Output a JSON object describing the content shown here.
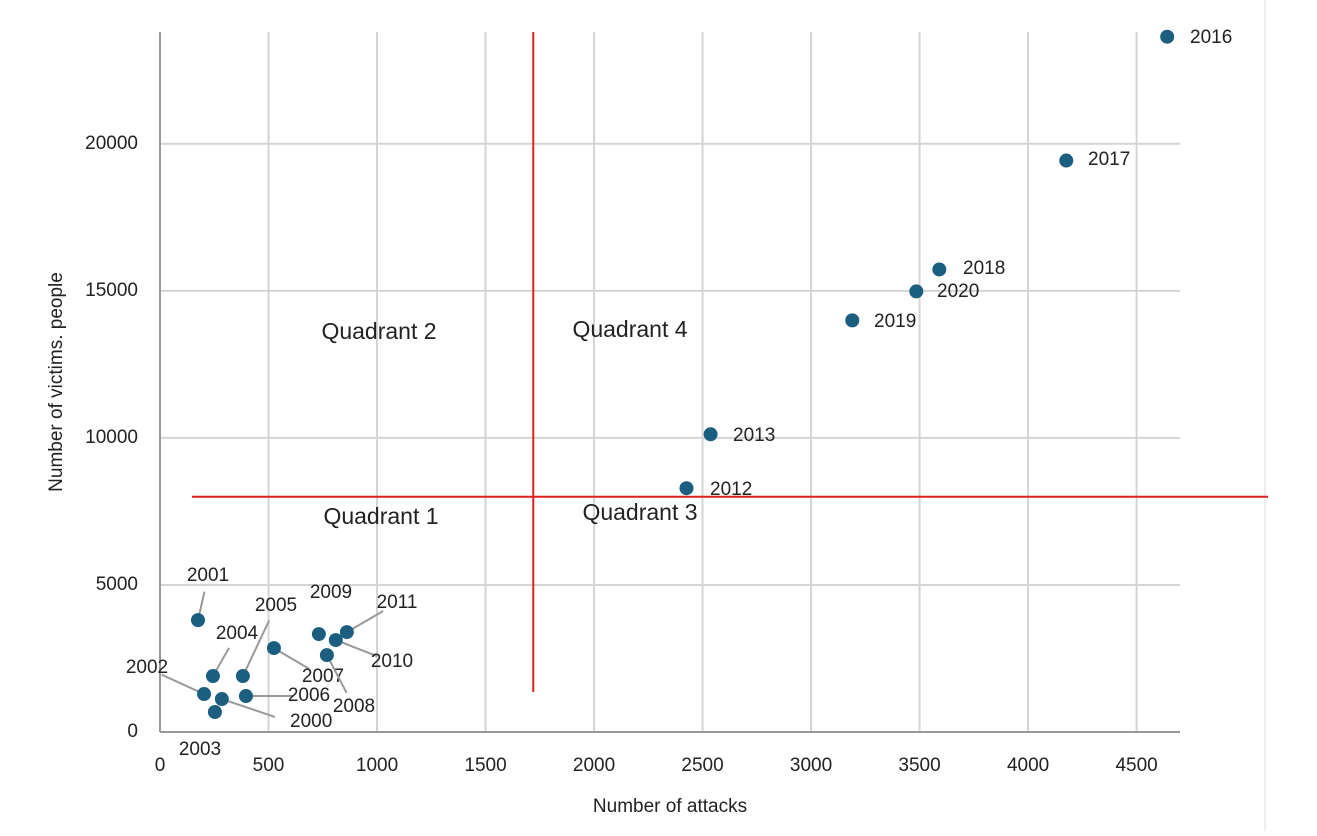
{
  "chart_data": {
    "type": "scatter",
    "x_label": "Number of attacks",
    "y_label": "Number of victims. people",
    "x": [
      285,
      175,
      203,
      253,
      244,
      382,
      396,
      525,
      769,
      732,
      810,
      861,
      2426,
      2537,
      4641,
      4176,
      3591,
      3190,
      3485
    ],
    "series": [
      {
        "color": "#1b5e80",
        "values": [
          1121,
          3804,
          1290,
          680,
          1902,
          1902,
          1223,
          2853,
          2615,
          3329,
          3125,
          3397,
          8288,
          10122,
          23640,
          19430,
          15727,
          13995,
          14980
        ],
        "labels": [
          "2000",
          "2001",
          "2002",
          "2003",
          "2004",
          "2005",
          "2006",
          "2007",
          "2008",
          "2009",
          "2010",
          "2011",
          "2012",
          "2013",
          "2016",
          "2017",
          "2018",
          "2019",
          "2020"
        ]
      }
    ],
    "xlim": [
      0,
      4700
    ],
    "ylim": [
      0,
      23800
    ],
    "xticks": [
      0,
      500,
      1000,
      1500,
      2000,
      2500,
      3000,
      3500,
      4000,
      4500
    ],
    "yticks": [
      0,
      5000,
      10000,
      15000,
      20000
    ],
    "grid": true,
    "quadrant_lines": {
      "x": 1720,
      "y": 8000,
      "color": "#e02020"
    },
    "annotations": [
      "Quadrant 1",
      "Quadrant 2",
      "Quadrant 3",
      "Quadrant 4"
    ]
  }
}
